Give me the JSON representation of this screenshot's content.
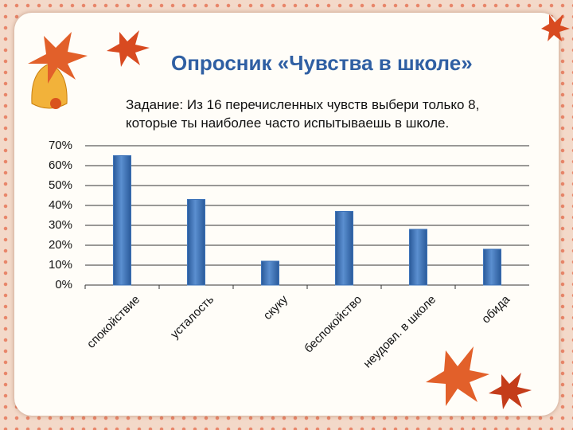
{
  "title": "Опросник «Чувства в школе»",
  "task": "Задание: Из 16 перечисленных чувств выбери только 8, которые ты наиболее часто испытываешь в школе.",
  "chart_data": {
    "type": "bar",
    "categories": [
      "спокойствие",
      "усталость",
      "скуку",
      "беспокойство",
      "неудовл. в школе",
      "обида"
    ],
    "values": [
      65,
      43,
      12,
      37,
      28,
      18
    ],
    "color": "#3c72b8",
    "ylim": [
      0,
      70
    ],
    "yticks": [
      {
        "value": 0,
        "label": "0%"
      },
      {
        "value": 10,
        "label": "10%"
      },
      {
        "value": 20,
        "label": "20%"
      },
      {
        "value": 30,
        "label": "30%"
      },
      {
        "value": 40,
        "label": "40%"
      },
      {
        "value": 50,
        "label": "50%"
      },
      {
        "value": 60,
        "label": "60%"
      },
      {
        "value": 70,
        "label": "70%"
      }
    ],
    "grid": true
  }
}
